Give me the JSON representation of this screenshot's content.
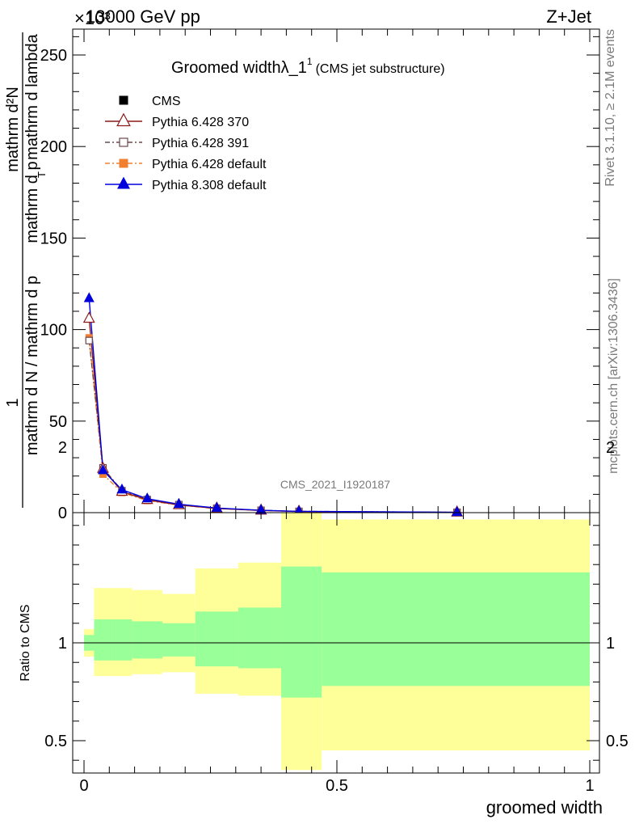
{
  "header": {
    "left": "13000 GeV pp",
    "right": "Z+Jet",
    "multiplier": "×10³"
  },
  "side_text": {
    "rivet": "Rivet 3.1.10, ≥ 2.1M events",
    "mcplots": "mcplots.cern.ch [arXiv:1306.3436]"
  },
  "chart_data": [
    {
      "type": "line",
      "title": "Groomed widthλ_1",
      "title_sup": "1",
      "subtitle": "(CMS jet substructure)",
      "watermark": "CMS_2021_I1920187",
      "ylabel_numerator": "1",
      "ylabel_numerator_right": "mathrm d²N",
      "ylabel_denominator": "mathrm d N / mathrm d p",
      "ylabel_denominator_right": "mathrm d p",
      "ylabel_sub": "T",
      "ylabel_tail": "mathrm d lambda",
      "xlim": [
        0,
        1
      ],
      "ylim": [
        0,
        265
      ],
      "y_ticks": [
        0,
        50,
        100,
        150,
        200,
        250
      ],
      "x": [
        0.01,
        0.0375,
        0.075,
        0.125,
        0.1875,
        0.2625,
        0.35,
        0.425,
        0.7375
      ],
      "series": [
        {
          "name": "CMS",
          "color": "#000000",
          "marker": "square-filled",
          "dash": "none",
          "values": [
            0.3,
            0.3,
            0.3,
            0.3,
            0.3,
            0.2,
            0.1,
            0.05,
            0.01
          ]
        },
        {
          "name": "Pythia 6.428 370",
          "color": "#8b1a1a",
          "marker": "triangle-open",
          "dash": "none",
          "values": [
            106,
            24,
            11.5,
            7,
            4.2,
            2.3,
            1.2,
            0.6,
            0.15
          ]
        },
        {
          "name": "Pythia 6.428 391",
          "color": "#6b4a4a",
          "marker": "square-open",
          "dash": "6,3,2,3",
          "values": [
            94,
            24.5,
            12,
            7.2,
            4.4,
            2.4,
            1.3,
            0.7,
            0.18
          ]
        },
        {
          "name": "Pythia 6.428 default",
          "color": "#f08030",
          "marker": "square-filled",
          "dash": "6,3,2,3",
          "values": [
            95.5,
            21,
            11,
            6.6,
            4.1,
            2.2,
            1.2,
            0.6,
            0.14
          ]
        },
        {
          "name": "Pythia 8.308 default",
          "color": "#0000dd",
          "marker": "triangle-filled",
          "dash": "none",
          "values": [
            117,
            23,
            12.5,
            7.6,
            4.6,
            2.5,
            1.3,
            0.7,
            0.16
          ]
        }
      ]
    },
    {
      "type": "area",
      "ylabel": "Ratio to CMS",
      "xlabel": "groomed width",
      "xlim": [
        0,
        1
      ],
      "ylim": [
        0.35,
        2.25
      ],
      "x_ticks": [
        0,
        0.5,
        1
      ],
      "x_tick_labels": [
        "0",
        "0.5",
        "1"
      ],
      "y_ticks": [
        0.5,
        1,
        2
      ],
      "y_tick_labels": [
        "0.5",
        "1",
        "2"
      ],
      "bin_edges": [
        0,
        0.02,
        0.055,
        0.095,
        0.155,
        0.22,
        0.305,
        0.39,
        0.47,
        1.0
      ],
      "bands": [
        {
          "name": "green",
          "color": "#99ff99",
          "low": [
            0.96,
            0.91,
            0.91,
            0.92,
            0.93,
            0.88,
            0.87,
            0.72,
            0.78
          ],
          "high": [
            1.04,
            1.12,
            1.12,
            1.11,
            1.1,
            1.16,
            1.18,
            1.39,
            1.36
          ]
        },
        {
          "name": "yellow",
          "color": "#ffff99",
          "low": [
            0.93,
            0.83,
            0.83,
            0.84,
            0.85,
            0.74,
            0.73,
            0.35,
            0.45
          ],
          "high": [
            1.07,
            1.28,
            1.28,
            1.27,
            1.25,
            1.38,
            1.41,
            1.7,
            1.63
          ]
        }
      ],
      "reference": 1
    }
  ]
}
